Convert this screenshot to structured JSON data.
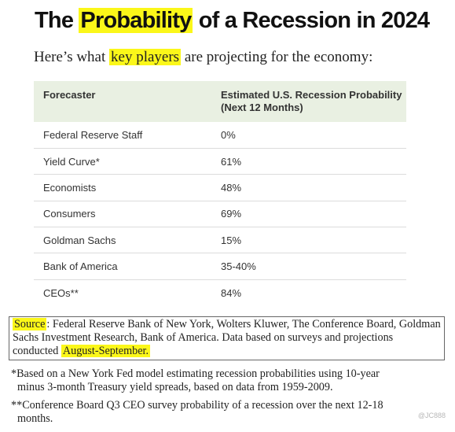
{
  "title": {
    "before": "The ",
    "highlight": "Probability",
    "after": " of a Recession in 2024"
  },
  "subtitle": {
    "before": "Here’s what ",
    "highlight": "key players",
    "after": " are projecting for the economy:"
  },
  "table": {
    "headers": [
      "Forecaster",
      "Estimated U.S. Recession Probability (Next 12 Months)"
    ],
    "rows": [
      [
        "Federal Reserve Staff",
        "0%"
      ],
      [
        "Yield Curve*",
        "61%"
      ],
      [
        "Economists",
        "48%"
      ],
      [
        "Consumers",
        "69%"
      ],
      [
        "Goldman Sachs",
        "15%"
      ],
      [
        "Bank of America",
        "35-40%"
      ],
      [
        "CEOs**",
        "84%"
      ]
    ]
  },
  "source": {
    "label": "Source",
    "text": ": Federal Reserve Bank of New York, Wolters Kluwer, The Conference Board, Goldman Sachs Investment Research, Bank of America. Data based on surveys and projections conducted ",
    "highlight": "August-September."
  },
  "notes": [
    {
      "first": "*Based on a New York Fed model estimating recession probabilities using 10-year",
      "rest": "minus 3-month Treasury yield spreads, based on data from 1959-2009."
    },
    {
      "first": "**Conference Board Q3 CEO survey probability of a recession over the next 12-18",
      "rest": "months."
    }
  ],
  "watermark": "@JC888",
  "colors": {
    "highlight": "#fbf719",
    "header_bg": "#e9f0e2",
    "row_divider": "#dcdcdc"
  }
}
